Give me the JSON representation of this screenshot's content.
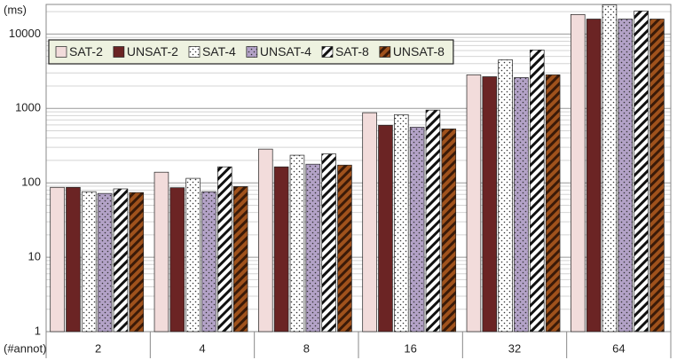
{
  "chart_data": {
    "type": "bar",
    "y_label": "(ms)",
    "x_label": "(#annot)",
    "categories": [
      "2",
      "4",
      "8",
      "16",
      "32",
      "64"
    ],
    "series": [
      {
        "name": "SAT-2",
        "color": "#f2dcdb",
        "pattern": "solid",
        "values": [
          87,
          139,
          284,
          876,
          2830,
          18300
        ]
      },
      {
        "name": "UNSAT-2",
        "color": "#6b2424",
        "pattern": "solid",
        "values": [
          87,
          86,
          164,
          594,
          2670,
          15900
        ]
      },
      {
        "name": "SAT-4",
        "color": "#ffffff",
        "pattern": "dots",
        "values": [
          76,
          115,
          235,
          824,
          4500,
          24700
        ]
      },
      {
        "name": "UNSAT-4",
        "color": "#b3a2c7",
        "pattern": "dots",
        "values": [
          72,
          76,
          178,
          560,
          2600,
          15900
        ]
      },
      {
        "name": "SAT-8",
        "color": "#ffffff",
        "pattern": "stripes",
        "values": [
          83,
          164,
          245,
          950,
          6100,
          20400
        ]
      },
      {
        "name": "UNSAT-8",
        "color": "#a0521c",
        "pattern": "stripes",
        "values": [
          74,
          89,
          173,
          530,
          2830,
          15900
        ]
      }
    ],
    "log_scale": true,
    "ylim": [
      1,
      25000
    ],
    "yticks": [
      1,
      10,
      100,
      1000,
      10000
    ],
    "minor_yticks": [
      2,
      3,
      4,
      5,
      6,
      7,
      8,
      9,
      20,
      30,
      40,
      50,
      60,
      70,
      80,
      90,
      200,
      300,
      400,
      500,
      600,
      700,
      800,
      900,
      2000,
      3000,
      4000,
      5000,
      6000,
      7000,
      8000,
      9000,
      20000
    ],
    "grid": true,
    "legend": "top-left"
  }
}
